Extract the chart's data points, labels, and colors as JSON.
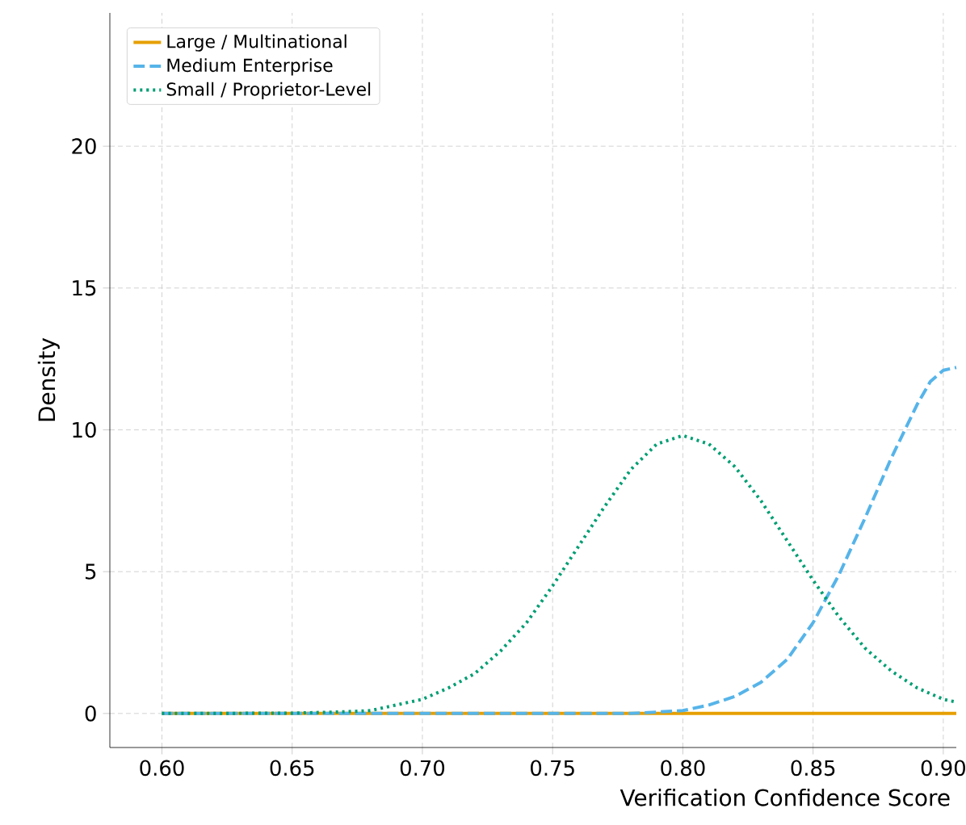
{
  "chart_data": {
    "type": "line",
    "xlabel": "Verification Confidence Score",
    "ylabel": "Density",
    "xlim": [
      0.58,
      0.905
    ],
    "ylim": [
      -1.2,
      24.7
    ],
    "xticks": [
      {
        "value": 0.6,
        "label": "0.60"
      },
      {
        "value": 0.65,
        "label": "0.65"
      },
      {
        "value": 0.7,
        "label": "0.70"
      },
      {
        "value": 0.75,
        "label": "0.75"
      },
      {
        "value": 0.8,
        "label": "0.80"
      },
      {
        "value": 0.85,
        "label": "0.85"
      },
      {
        "value": 0.9,
        "label": "0.90"
      }
    ],
    "yticks": [
      0,
      5,
      10,
      15,
      20
    ],
    "grid": true,
    "legend": "top left",
    "marker": "none",
    "series": [
      {
        "name": "Large / Multinational",
        "color": "#e69f00",
        "line_style": "solid",
        "x": [
          0.6,
          0.905
        ],
        "values": [
          0,
          0
        ]
      },
      {
        "name": "Medium Enterprise",
        "color": "#56b4e9",
        "line_style": "dashed",
        "x": [
          0.6,
          0.78,
          0.79,
          0.8,
          0.81,
          0.82,
          0.83,
          0.84,
          0.85,
          0.86,
          0.87,
          0.88,
          0.89,
          0.895,
          0.9,
          0.905
        ],
        "values": [
          0,
          0,
          0.05,
          0.1,
          0.3,
          0.6,
          1.1,
          1.9,
          3.2,
          4.9,
          6.9,
          9.0,
          10.9,
          11.7,
          12.1,
          12.2
        ]
      },
      {
        "name": "Small / Proprietor-Level",
        "color": "#009e73",
        "line_style": "dotted",
        "x": [
          0.6,
          0.65,
          0.67,
          0.68,
          0.69,
          0.7,
          0.71,
          0.72,
          0.73,
          0.74,
          0.75,
          0.76,
          0.77,
          0.78,
          0.79,
          0.8,
          0.81,
          0.82,
          0.83,
          0.84,
          0.85,
          0.86,
          0.87,
          0.88,
          0.89,
          0.9,
          0.905
        ],
        "values": [
          0,
          0.01,
          0.06,
          0.1,
          0.3,
          0.5,
          0.9,
          1.4,
          2.2,
          3.2,
          4.5,
          5.9,
          7.3,
          8.6,
          9.5,
          9.8,
          9.5,
          8.7,
          7.5,
          6.1,
          4.7,
          3.4,
          2.3,
          1.5,
          0.9,
          0.5,
          0.4
        ]
      }
    ]
  }
}
